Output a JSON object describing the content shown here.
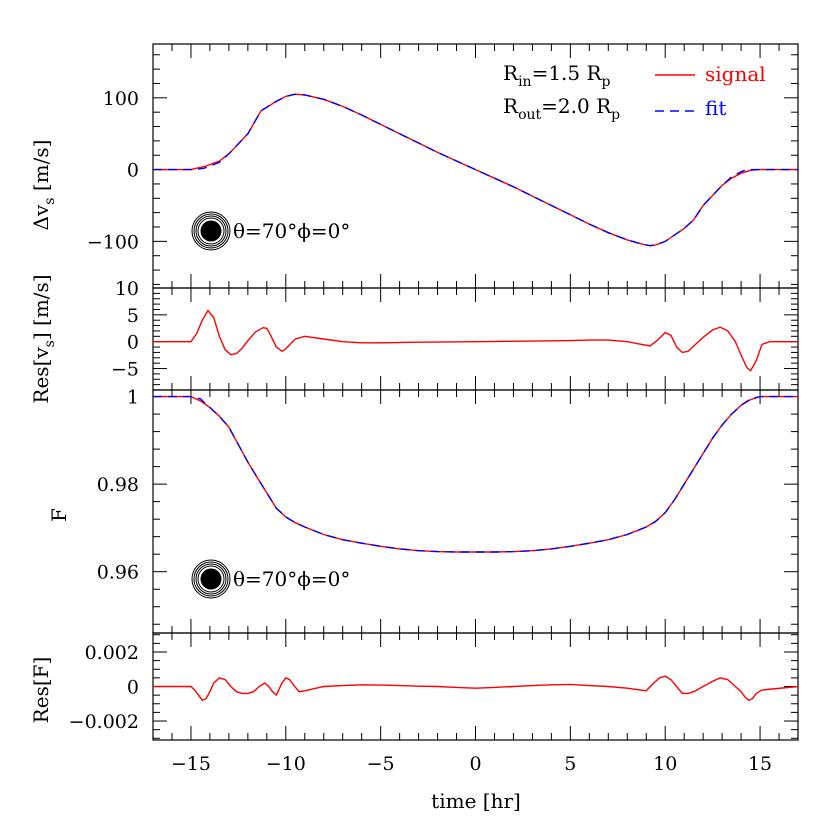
{
  "chart_data": [
    {
      "panel": "velocity",
      "type": "line",
      "ylabel": "Δv_s [m/s]",
      "xlim": [
        -17,
        17
      ],
      "ylim": [
        -165,
        175
      ],
      "yticks": [
        -100,
        0,
        100
      ],
      "ytick_labels": [
        "−100",
        "0",
        "100"
      ],
      "legend": {
        "placement": "top-right",
        "r_in": "R_in=1.5 R_p",
        "r_out": "R_out=2.0 R_p"
      },
      "annotation": "θ=70°ϕ=0°",
      "series": [
        {
          "name": "signal",
          "color": "#ff0000",
          "style": "solid",
          "x": [
            -17,
            -15,
            -14.2,
            -13.5,
            -13,
            -12,
            -11.3,
            -10.5,
            -10,
            -9.5,
            -9,
            -8,
            -7,
            -6,
            -5,
            -4,
            -3,
            -2,
            -1,
            0,
            1,
            2,
            3,
            4,
            5,
            6,
            7,
            8,
            8.8,
            9.2,
            9.5,
            10,
            10.5,
            11,
            11.5,
            12,
            13,
            13.5,
            14,
            14.5,
            15,
            17
          ],
          "y": [
            0,
            0,
            5,
            12,
            22,
            50,
            82,
            95,
            102,
            105,
            104,
            98,
            88,
            76,
            63,
            50,
            37,
            24,
            12,
            0,
            -12,
            -24,
            -37,
            -50,
            -63,
            -76,
            -88,
            -98,
            -104,
            -106,
            -105,
            -100,
            -91,
            -82,
            -70,
            -50,
            -22,
            -12,
            -5,
            -1,
            0,
            0
          ]
        },
        {
          "name": "fit",
          "color": "#0000ff",
          "style": "dashed",
          "x": [
            -17,
            -14.8,
            -14.3,
            -13.5,
            -13,
            -12,
            -11.3,
            -10.5,
            -10,
            -9.5,
            -9,
            -8,
            -7,
            -6,
            -5,
            -4,
            -3,
            -2,
            -1,
            0,
            1,
            2,
            3,
            4,
            5,
            6,
            7,
            8,
            8.8,
            9.2,
            9.5,
            10,
            10.5,
            11,
            11.5,
            12,
            13,
            13.5,
            14,
            14.3,
            14.8,
            17
          ],
          "y": [
            0,
            0,
            2,
            10,
            22,
            50,
            82,
            95,
            102,
            105,
            104,
            98,
            88,
            76,
            63,
            50,
            37,
            24,
            12,
            0,
            -12,
            -24,
            -37,
            -50,
            -63,
            -76,
            -88,
            -98,
            -104,
            -106,
            -105,
            -100,
            -91,
            -82,
            -70,
            -50,
            -22,
            -10,
            -3,
            0,
            0,
            0
          ]
        }
      ]
    },
    {
      "panel": "velocity-residual",
      "type": "line",
      "ylabel": "Res[v_s] [m/s]",
      "xlim": [
        -17,
        17
      ],
      "ylim": [
        -9,
        10
      ],
      "yticks": [
        -5,
        0,
        5,
        10
      ],
      "ytick_labels": [
        "−5",
        "0",
        "5",
        "10"
      ],
      "series": [
        {
          "name": "",
          "color": "#ff0000",
          "style": "solid",
          "x": [
            -17,
            -15,
            -14.7,
            -14.4,
            -14.1,
            -13.8,
            -13.5,
            -13.2,
            -12.9,
            -12.6,
            -12.3,
            -12,
            -11.6,
            -11.2,
            -11,
            -10.8,
            -10.5,
            -10.2,
            -10,
            -9.5,
            -9,
            -8,
            -7,
            -6,
            -5,
            -3,
            0,
            3,
            5,
            6,
            7,
            8,
            9.2,
            9.6,
            10,
            10.3,
            10.6,
            10.9,
            11.2,
            11.5,
            12,
            12.5,
            12.9,
            13.3,
            13.7,
            14,
            14.3,
            14.5,
            14.8,
            15.1,
            15.5,
            17
          ],
          "y": [
            0,
            0,
            1.5,
            4,
            5.8,
            4.5,
            1,
            -1.5,
            -2.4,
            -2.2,
            -1.2,
            0.2,
            1.8,
            2.6,
            2.5,
            1.2,
            -1,
            -1.8,
            -1.3,
            0.5,
            1,
            0.5,
            0,
            -0.2,
            -0.2,
            -0.1,
            0,
            0.1,
            0.2,
            0.3,
            0.3,
            0,
            -0.8,
            0.3,
            1.7,
            1.2,
            -1,
            -2,
            -1.8,
            -0.8,
            0.8,
            2.2,
            2.7,
            2,
            0,
            -2.5,
            -4.8,
            -5.4,
            -3.5,
            -0.5,
            0,
            0
          ]
        }
      ]
    },
    {
      "panel": "flux",
      "type": "line",
      "ylabel": "F",
      "xlim": [
        -17,
        17
      ],
      "ylim": [
        0.946,
        1.0015
      ],
      "yticks": [
        0.96,
        0.98,
        1
      ],
      "ytick_labels": [
        "0.96",
        "0.98",
        "1"
      ],
      "annotation": "θ=70°ϕ=0°",
      "series": [
        {
          "name": "signal",
          "color": "#ff0000",
          "style": "solid",
          "x": [
            -17,
            -15,
            -14.5,
            -14,
            -13.5,
            -13,
            -12.5,
            -12,
            -11.5,
            -11,
            -10.5,
            -10,
            -9.5,
            -9,
            -8,
            -7,
            -6,
            -5,
            -4,
            -3,
            -2,
            -1,
            0,
            1,
            2,
            3,
            4,
            5,
            6,
            7,
            8,
            9,
            9.5,
            10,
            10.5,
            11,
            11.5,
            12,
            12.5,
            13,
            13.5,
            14,
            14.5,
            15,
            17
          ],
          "y": [
            1,
            1,
            0.999,
            0.9975,
            0.9955,
            0.993,
            0.989,
            0.985,
            0.9815,
            0.978,
            0.9745,
            0.9725,
            0.9712,
            0.9702,
            0.9685,
            0.9673,
            0.9665,
            0.9658,
            0.9652,
            0.9648,
            0.9646,
            0.9645,
            0.9645,
            0.9645,
            0.9646,
            0.9648,
            0.9652,
            0.9658,
            0.9665,
            0.9673,
            0.9685,
            0.9702,
            0.9715,
            0.9735,
            0.9765,
            0.98,
            0.9835,
            0.987,
            0.9905,
            0.9935,
            0.996,
            0.998,
            0.9993,
            1,
            1
          ]
        },
        {
          "name": "fit",
          "color": "#0000ff",
          "style": "dashed",
          "x": [
            -17,
            -15,
            -14.5,
            -14,
            -13.5,
            -13,
            -12.5,
            -12,
            -11.5,
            -11,
            -10.5,
            -10,
            -9.5,
            -9,
            -8,
            -7,
            -6,
            -5,
            -4,
            -3,
            -2,
            -1,
            0,
            1,
            2,
            3,
            4,
            5,
            6,
            7,
            8,
            9,
            9.5,
            10,
            10.5,
            11,
            11.5,
            12,
            12.5,
            13,
            13.5,
            14,
            14.5,
            15,
            17
          ],
          "y": [
            1,
            1,
            0.9995,
            0.9975,
            0.9955,
            0.993,
            0.989,
            0.985,
            0.9815,
            0.978,
            0.9745,
            0.9725,
            0.9712,
            0.9702,
            0.9685,
            0.9673,
            0.9665,
            0.9658,
            0.9652,
            0.9648,
            0.9646,
            0.9645,
            0.9645,
            0.9645,
            0.9646,
            0.9648,
            0.9652,
            0.9658,
            0.9665,
            0.9673,
            0.9685,
            0.9702,
            0.9715,
            0.9735,
            0.9765,
            0.98,
            0.9835,
            0.987,
            0.9905,
            0.9935,
            0.996,
            0.998,
            0.9995,
            1,
            1
          ]
        }
      ]
    },
    {
      "panel": "flux-residual",
      "type": "line",
      "ylabel": "Res[F]",
      "xlabel": "time [hr]",
      "xlim": [
        -17,
        17
      ],
      "ylim": [
        -0.0031,
        0.0031
      ],
      "yticks": [
        -0.002,
        0,
        0.002
      ],
      "ytick_labels": [
        "−0.002",
        "0",
        "0.002"
      ],
      "xticks": [
        -15,
        -10,
        -5,
        0,
        5,
        10,
        15
      ],
      "xtick_labels": [
        "−15",
        "−10",
        "−5",
        "0",
        "5",
        "10",
        "15"
      ],
      "series": [
        {
          "name": "",
          "color": "#ff0000",
          "style": "solid",
          "x": [
            -17,
            -15,
            -14.8,
            -14.6,
            -14.4,
            -14.2,
            -14,
            -13.8,
            -13.5,
            -13.2,
            -12.9,
            -12.6,
            -12.3,
            -12,
            -11.7,
            -11.4,
            -11.1,
            -10.9,
            -10.7,
            -10.5,
            -10.2,
            -10,
            -9.8,
            -9.6,
            -9.3,
            -9,
            -8,
            -7,
            -6,
            -5,
            -4,
            -3,
            -2,
            -1,
            0,
            1,
            2,
            3,
            4,
            5,
            6,
            7,
            8,
            9,
            9.4,
            9.7,
            10,
            10.3,
            10.6,
            10.9,
            11.2,
            11.5,
            12,
            12.5,
            12.9,
            13.3,
            13.7,
            14,
            14.2,
            14.4,
            14.6,
            14.8,
            15.1,
            17
          ],
          "y": [
            0,
            0,
            -0.0002,
            -0.0005,
            -0.0008,
            -0.0007,
            -0.0003,
            0.0002,
            0.0005,
            0.0004,
            0,
            -0.0003,
            -0.0004,
            -0.0004,
            -0.0003,
            0,
            0.0002,
            0,
            -0.0003,
            -0.0005,
            0.0002,
            0.0005,
            0.0004,
            0.0001,
            -0.0003,
            -0.00025,
            0,
            5e-05,
            0.0001,
            8e-05,
            5e-05,
            2e-05,
            0,
            -5e-05,
            -0.0001,
            -5e-05,
            0,
            5e-05,
            0.0001,
            0.00012,
            5e-05,
            0,
            -0.0001,
            -0.00025,
            0.0002,
            0.0005,
            0.0006,
            0.0004,
            0,
            -0.0004,
            -0.0004,
            -0.0003,
            0,
            0.0003,
            0.0005,
            0.0004,
            0,
            -0.0003,
            -0.0006,
            -0.0008,
            -0.0007,
            -0.0004,
            -0.0002,
            0
          ]
        }
      ]
    }
  ],
  "legend": {
    "signal_label": "signal",
    "fit_label": "fit",
    "signal_color": "#ff0000",
    "fit_color": "#0000ff"
  },
  "annotation_text": "θ=70°ϕ=0°"
}
